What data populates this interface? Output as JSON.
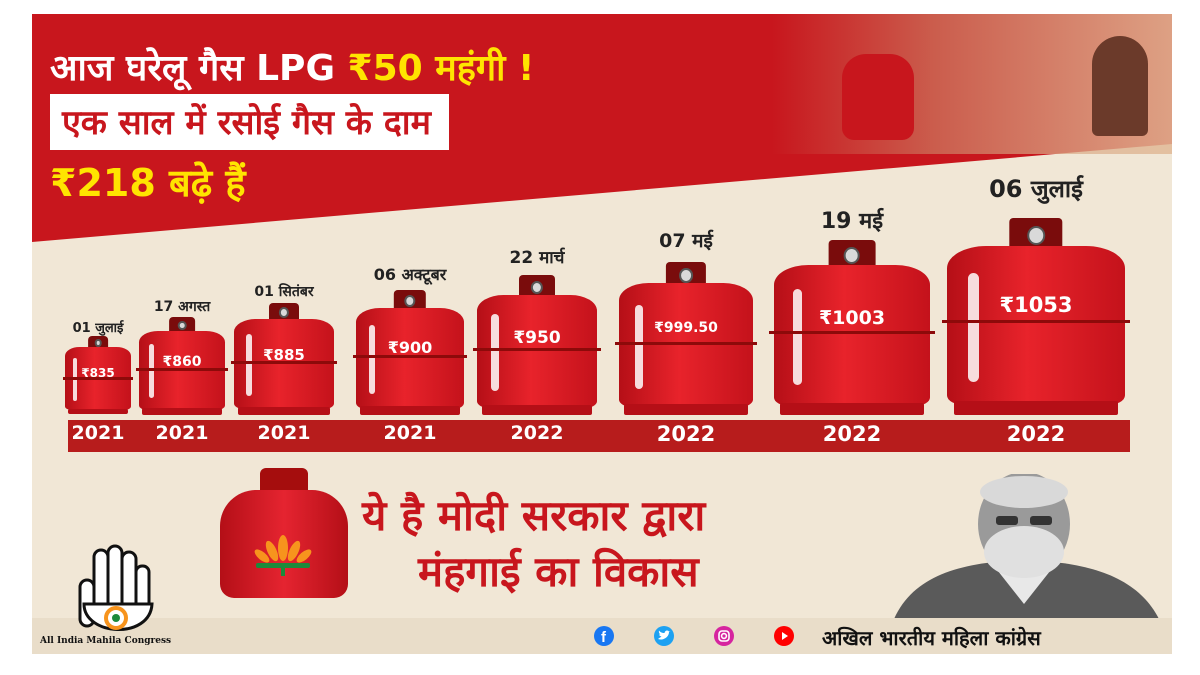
{
  "headline": {
    "line1_prefix": "आज घरेलू गैस LPG ",
    "line1_highlight": "₹50 महंगी !",
    "line2": "एक साल में रसोई गैस के दाम",
    "line3": "₹218 बढ़े हैं"
  },
  "cylinders": [
    {
      "date": "01 जुलाई",
      "price": "₹835",
      "year": "2021"
    },
    {
      "date": "17 अगस्त",
      "price": "₹860",
      "year": "2021"
    },
    {
      "date": "01 सितंबर",
      "price": "₹885",
      "year": "2021"
    },
    {
      "date": "06 अक्टूबर",
      "price": "₹900",
      "year": "2021"
    },
    {
      "date": "22 मार्च",
      "price": "₹950",
      "year": "2022"
    },
    {
      "date": "07 मई",
      "price": "₹999.50",
      "year": "2022"
    },
    {
      "date": "19 मई",
      "price": "₹1003",
      "year": "2022"
    },
    {
      "date": "06 जुलाई",
      "price": "₹1053",
      "year": "2022"
    }
  ],
  "bottom": {
    "line1": "ये है मोदी सरकार द्वारा",
    "line2": "मंहगाई का विकास"
  },
  "footer": {
    "org_english": "All India Mahila Congress",
    "org_hindi": "अखिल भारतीय महिला कांग्रेस",
    "social_icons": [
      "facebook-icon",
      "twitter-icon",
      "instagram-icon",
      "youtube-icon"
    ]
  },
  "colors": {
    "red": "#c8161d",
    "yellow": "#ffe400",
    "cream": "#f1e7d6",
    "dark_red": "#b71c1c"
  }
}
